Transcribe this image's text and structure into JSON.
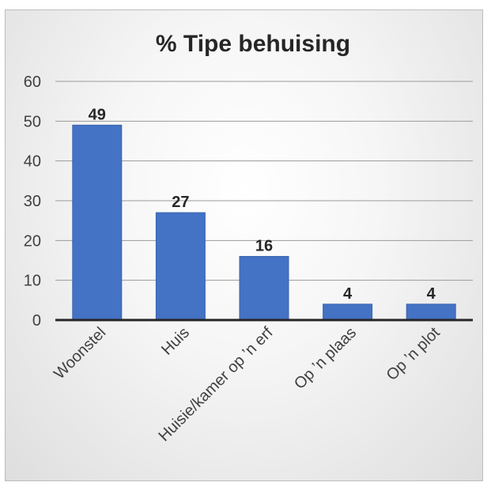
{
  "chart_data": {
    "type": "bar",
    "title": "% Tipe behuising",
    "categories": [
      "Woonstel",
      "Huis",
      "Huisie/kamer op ’n erf",
      "Op ’n plaas",
      "Op ’n plot"
    ],
    "values": [
      49,
      27,
      16,
      4,
      4
    ],
    "value_labels": [
      "49",
      "27",
      "16",
      "4",
      "4"
    ],
    "xlabel": "",
    "ylabel": "",
    "ylim": [
      0,
      60
    ],
    "yticks": [
      0,
      10,
      20,
      30,
      40,
      50,
      60
    ],
    "grid": true,
    "legend": "none",
    "colors": {
      "bar": "#4472c4",
      "bar_edge": "#3a64b0",
      "text": "#404040"
    }
  }
}
